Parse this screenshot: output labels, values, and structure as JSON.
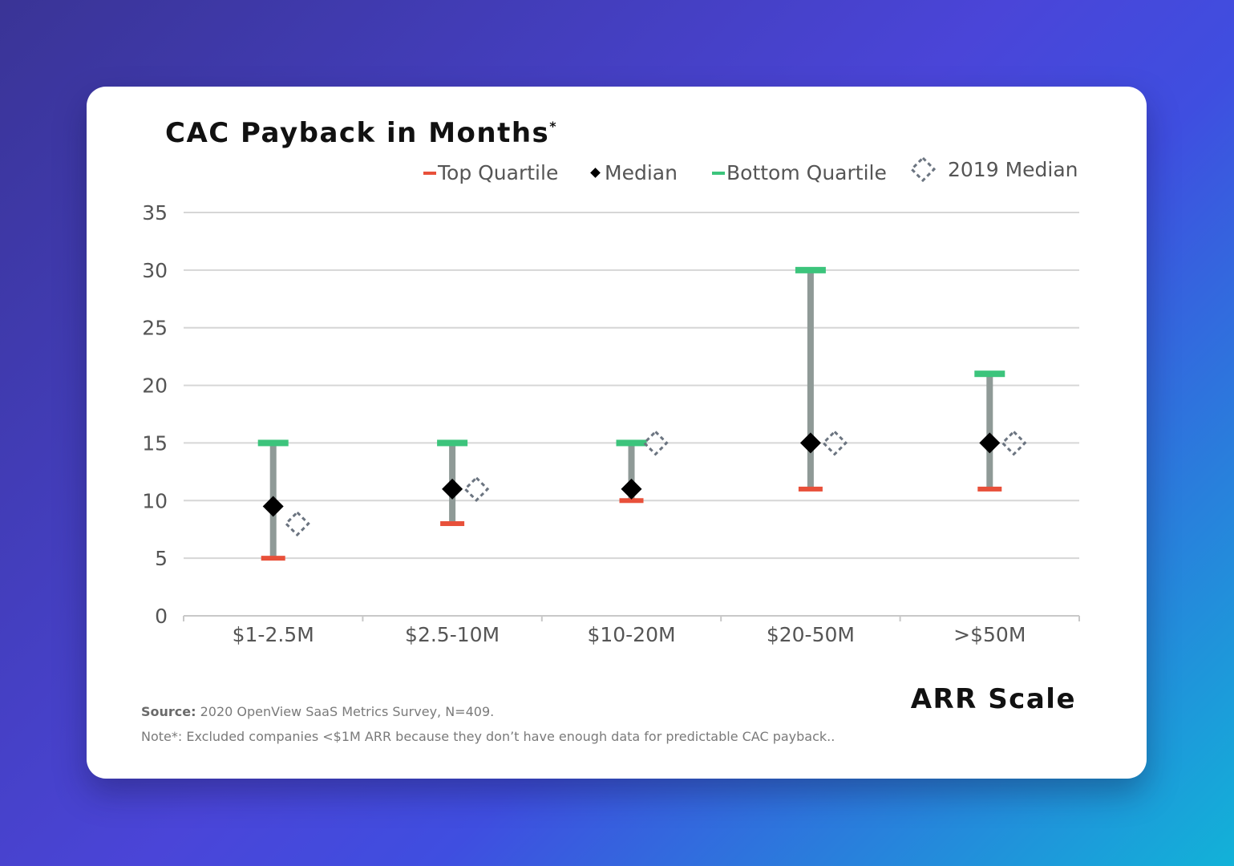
{
  "chart_data": {
    "type": "range",
    "title": "CAC Payback in Months",
    "title_mark": "*",
    "xlabel": "ARR Scale",
    "ylabel": "",
    "ylim": [
      0,
      35
    ],
    "yticks": [
      0,
      5,
      10,
      15,
      20,
      25,
      30,
      35
    ],
    "grid": true,
    "legend_position": "top-right",
    "categories": [
      "$1-2.5M",
      "$2.5-10M",
      "$10-20M",
      "$20-50M",
      ">$50M"
    ],
    "series": [
      {
        "name": "Top Quartile",
        "color": "#e8503a",
        "marker": "dash",
        "values": [
          5,
          8,
          10,
          11,
          11
        ]
      },
      {
        "name": "Median",
        "color": "#000000",
        "marker": "diamond",
        "values": [
          9.5,
          11,
          11,
          15,
          15
        ]
      },
      {
        "name": "Bottom Quartile",
        "color": "#3cc47c",
        "marker": "dash",
        "values": [
          15,
          15,
          15,
          30,
          21
        ]
      },
      {
        "name": "2019 Median",
        "color": "#6b7480",
        "marker": "hollow-diamond",
        "values": [
          8,
          11,
          15,
          15,
          15
        ]
      }
    ],
    "range_color": "#8f9a97"
  },
  "footer": {
    "source_label": "Source:",
    "source_text": " 2020 OpenView SaaS Metrics Survey, N=409.",
    "note": "Note*: Excluded companies <$1M ARR because they don’t have enough data for predictable CAC payback.."
  }
}
